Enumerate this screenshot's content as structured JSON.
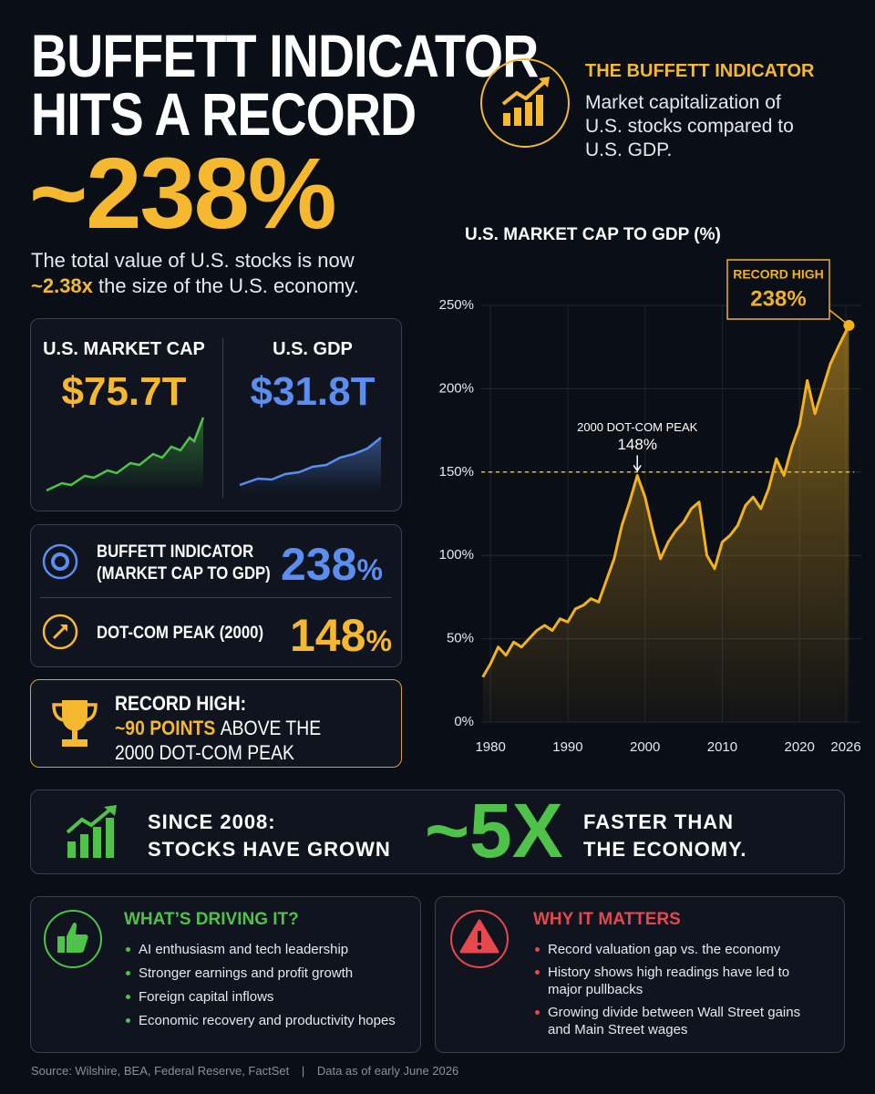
{
  "header": {
    "title_line1": "BUFFETT INDICATOR",
    "title_line2": "HITS A RECORD",
    "headline": "~238%",
    "sub_line1": "The total value of U.S. stocks is now",
    "sub_highlight": "~2.38x",
    "sub_rest": "the size of the U.S. economy."
  },
  "definition": {
    "title": "THE BUFFETT INDICATOR",
    "text": "Market capitalization of U.S. stocks compared to U.S. GDP."
  },
  "stats": {
    "market_cap_label": "U.S. MARKET CAP",
    "market_cap": "$75.7T",
    "gdp_label": "U.S. GDP",
    "gdp": "$31.8T"
  },
  "comparison": [
    {
      "label_line1": "BUFFETT INDICATOR",
      "label_line2": "(MARKET CAP TO GDP)",
      "value": "238",
      "unit": "%"
    },
    {
      "label_line1": "DOT-COM PEAK (2000)",
      "value": "148",
      "unit": "%"
    }
  ],
  "record": {
    "title": "RECORD HIGH:",
    "highlight": "~90 POINTS",
    "rest": "ABOVE THE",
    "line2": "2000 DOT-COM PEAK"
  },
  "banner": {
    "line1": "SINCE 2008:",
    "line2": "STOCKS HAVE GROWN",
    "big": "~5X",
    "line3": "FASTER THAN",
    "line4": "THE ECONOMY."
  },
  "drivers": {
    "title": "WHAT’S DRIVING IT?",
    "items": [
      "AI enthusiasm and tech leadership",
      "Stronger earnings and profit growth",
      "Foreign capital inflows",
      "Economic recovery and productivity hopes"
    ]
  },
  "matters": {
    "title": "WHY IT MATTERS",
    "items": [
      "Record valuation gap vs. the economy",
      "History shows high readings have led to major pullbacks",
      "Growing divide between Wall Street gains and Main Street wages"
    ]
  },
  "footer": {
    "source": "Source: Wilshire, BEA, Federal Reserve, FactSet",
    "separator": "|",
    "date": "Data as of early June 2026"
  },
  "chart_data": {
    "type": "line",
    "title": "U.S. MARKET CAP TO GDP (%)",
    "x": [
      1979,
      1980,
      1981,
      1982,
      1983,
      1984,
      1985,
      1986,
      1987,
      1988,
      1989,
      1990,
      1991,
      1992,
      1993,
      1994,
      1995,
      1996,
      1997,
      1998,
      1999,
      2000,
      2001,
      2002,
      2003,
      2004,
      2005,
      2006,
      2007,
      2008,
      2009,
      2010,
      2011,
      2012,
      2013,
      2014,
      2015,
      2016,
      2017,
      2018,
      2019,
      2020,
      2021,
      2022,
      2023,
      2024,
      2025,
      2026.4
    ],
    "series": [
      {
        "name": "Market cap to GDP",
        "color": "#f2b21f",
        "values": [
          27,
          35,
          45,
          40,
          48,
          45,
          50,
          55,
          58,
          55,
          62,
          60,
          68,
          70,
          74,
          72,
          85,
          98,
          118,
          132,
          148,
          135,
          115,
          98,
          108,
          115,
          120,
          128,
          132,
          100,
          92,
          108,
          112,
          118,
          130,
          135,
          128,
          140,
          158,
          148,
          165,
          178,
          205,
          185,
          200,
          215,
          225,
          238
        ]
      }
    ],
    "xlim": [
      1978.8,
      2028
    ],
    "xticks": [
      1980,
      1990,
      2000,
      2010,
      2020,
      2026
    ],
    "ylim": [
      0,
      250
    ],
    "yticks": [
      {
        "value": 0,
        "label": "0%"
      },
      {
        "value": 50,
        "label": "50%"
      },
      {
        "value": 100,
        "label": "100%"
      },
      {
        "value": 150,
        "label": "150%"
      },
      {
        "value": 200,
        "label": "200%"
      },
      {
        "value": 250,
        "label": "250%"
      }
    ],
    "grid": true,
    "reference_line": 150,
    "peak_note": "2000 DOT-COM PEAK",
    "peak_label": "148%",
    "record_note": "RECORD HIGH",
    "record_label": "238%"
  }
}
